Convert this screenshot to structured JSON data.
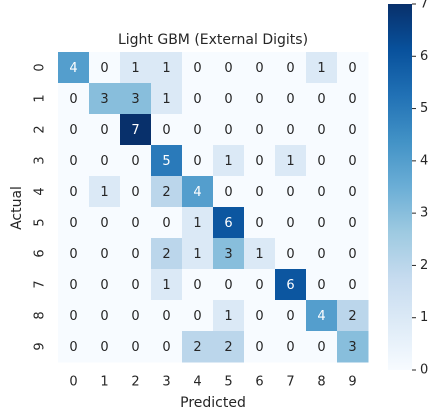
{
  "chart_data": {
    "type": "heatmap",
    "title": "Light GBM (External Digits)",
    "x_label": "Predicted",
    "y_label": "Actual",
    "x_categories": [
      "0",
      "1",
      "2",
      "3",
      "4",
      "5",
      "6",
      "7",
      "8",
      "9"
    ],
    "y_categories": [
      "0",
      "1",
      "2",
      "3",
      "4",
      "5",
      "6",
      "7",
      "8",
      "9"
    ],
    "values": [
      [
        4,
        0,
        1,
        1,
        0,
        0,
        0,
        0,
        1,
        0
      ],
      [
        0,
        3,
        3,
        1,
        0,
        0,
        0,
        0,
        0,
        0
      ],
      [
        0,
        0,
        7,
        0,
        0,
        0,
        0,
        0,
        0,
        0
      ],
      [
        0,
        0,
        0,
        5,
        0,
        1,
        0,
        1,
        0,
        0
      ],
      [
        0,
        1,
        0,
        2,
        4,
        0,
        0,
        0,
        0,
        0
      ],
      [
        0,
        0,
        0,
        0,
        1,
        6,
        0,
        0,
        0,
        0
      ],
      [
        0,
        0,
        0,
        2,
        1,
        3,
        1,
        0,
        0,
        0
      ],
      [
        0,
        0,
        0,
        1,
        0,
        0,
        0,
        6,
        0,
        0
      ],
      [
        0,
        0,
        0,
        0,
        0,
        1,
        0,
        0,
        4,
        2
      ],
      [
        0,
        0,
        0,
        0,
        2,
        2,
        0,
        0,
        0,
        3
      ]
    ],
    "colormap": "Blues",
    "clim": [
      0,
      7
    ],
    "cticks": [
      0,
      1,
      2,
      3,
      4,
      5,
      6,
      7
    ]
  }
}
